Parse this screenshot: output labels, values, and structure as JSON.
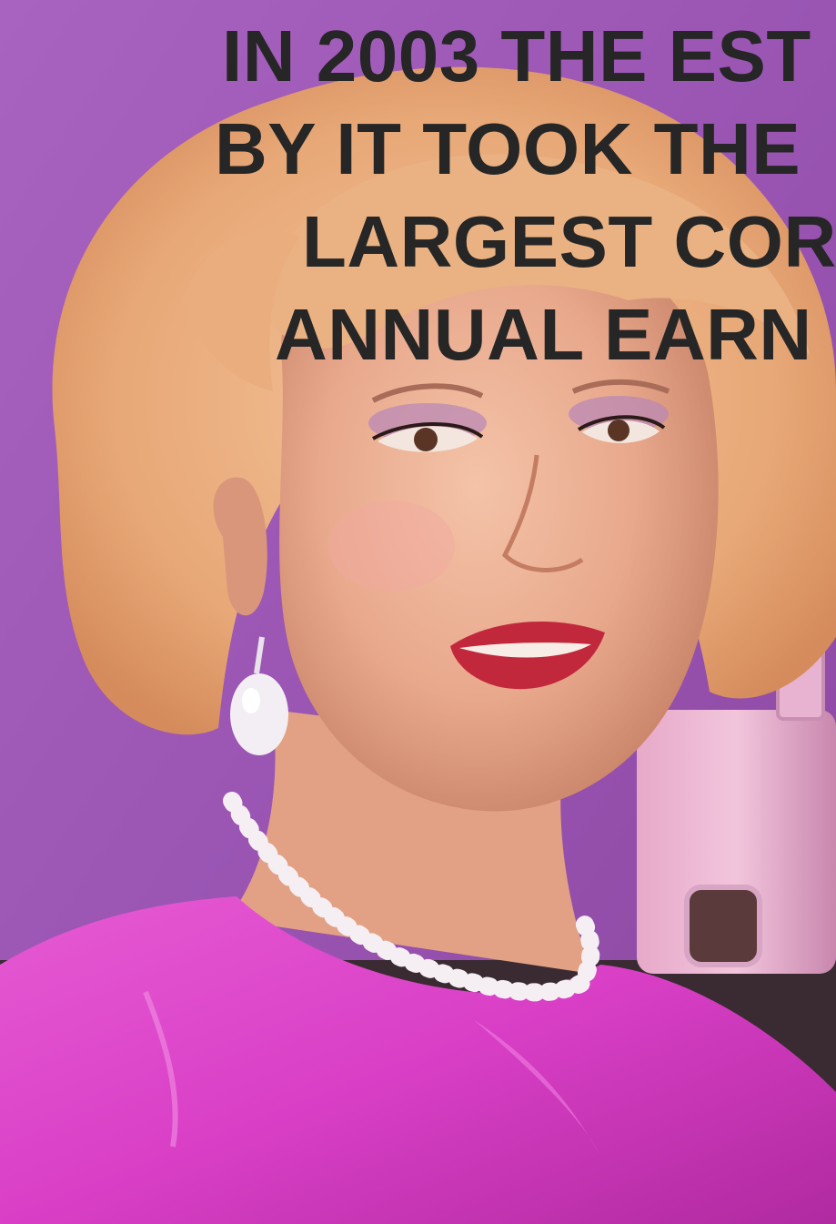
{
  "caption": {
    "lines": [
      "IN 2003 THE EST",
      "BY IT TOOK THE",
      "LARGEST COR",
      "ANNUAL EARN"
    ]
  },
  "colors": {
    "background": "#9b58b5",
    "caption_text": "#262626",
    "blouse": "#d93fc6",
    "hair": "#e8a877",
    "lips": "#c2283c"
  },
  "image": {
    "subject_icon": "portrait-painting"
  }
}
